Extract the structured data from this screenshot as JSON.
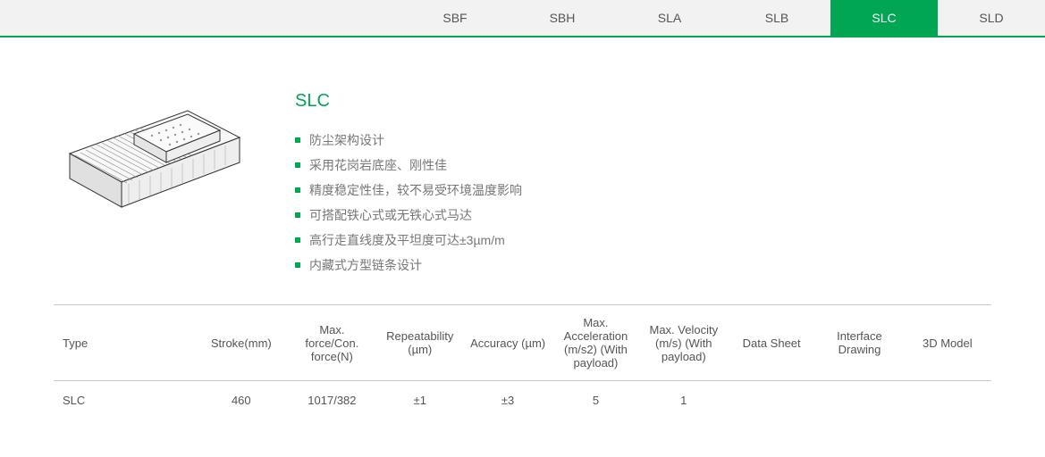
{
  "tabs": [
    {
      "label": "SBF",
      "active": false
    },
    {
      "label": "SBH",
      "active": false
    },
    {
      "label": "SLA",
      "active": false
    },
    {
      "label": "SLB",
      "active": false
    },
    {
      "label": "SLC",
      "active": true
    },
    {
      "label": "SLD",
      "active": false
    }
  ],
  "product": {
    "title": "SLC",
    "features": [
      "防尘架构设计",
      "采用花岗岩底座、刚性佳",
      "精度稳定性佳，较不易受环境温度影响",
      "可搭配铁心式或无铁心式马达",
      "高行走直线度及平坦度可达±3µm/m",
      "内藏式方型链条设计"
    ]
  },
  "spec_table": {
    "columns": [
      "Type",
      "Stroke(mm)",
      "Max. force/Con. force(N)",
      "Repeatability (µm)",
      "Accuracy (µm)",
      "Max. Acceleration (m/s2) (With payload)",
      "Max. Velocity (m/s) (With payload)",
      "Data Sheet",
      "Interface Drawing",
      "3D Model"
    ],
    "rows": [
      [
        "SLC",
        "460",
        "1017/382",
        "±1",
        "±3",
        "5",
        "1",
        "",
        "",
        ""
      ]
    ]
  },
  "colors": {
    "accent": "#00a651",
    "tab_bg": "#f2f2f2",
    "border": "#cccccc",
    "text": "#555555",
    "text_light": "#777777"
  }
}
